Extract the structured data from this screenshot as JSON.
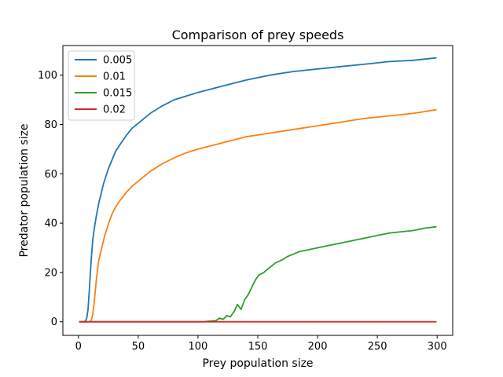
{
  "chart_data": {
    "type": "line",
    "title": "Comparison of prey speeds",
    "xlabel": "Prey population size",
    "ylabel": "Predator population size",
    "xlim": [
      -13,
      313
    ],
    "ylim": [
      -5.5,
      112
    ],
    "xticks": [
      0,
      50,
      100,
      150,
      200,
      250,
      300
    ],
    "yticks": [
      0,
      20,
      40,
      60,
      80,
      100
    ],
    "grid": false,
    "legend_position": "top-left",
    "series": [
      {
        "name": "0.005",
        "color": "#1f77b4",
        "x": [
          1,
          5,
          6,
          7,
          8,
          9,
          10,
          11,
          12,
          13,
          14,
          15,
          17,
          19,
          21,
          23,
          25,
          28,
          31,
          35,
          40,
          45,
          50,
          60,
          70,
          80,
          90,
          100,
          120,
          140,
          160,
          180,
          200,
          220,
          240,
          260,
          280,
          299
        ],
        "y": [
          0,
          0,
          0.5,
          1.5,
          5,
          12,
          20,
          27,
          33,
          37,
          40,
          43,
          48,
          52,
          56,
          59,
          62,
          65.5,
          69,
          72,
          75.5,
          78.5,
          80.5,
          84.5,
          87.5,
          90,
          91.5,
          93,
          95.5,
          98,
          100,
          101.5,
          102.5,
          103.5,
          104.5,
          105.5,
          106,
          107
        ]
      },
      {
        "name": "0.01",
        "color": "#ff7f0e",
        "x": [
          1,
          10,
          11,
          12,
          13,
          14,
          15,
          16,
          17,
          18,
          20,
          22,
          24,
          26,
          28,
          30,
          33,
          36,
          40,
          45,
          50,
          60,
          70,
          80,
          90,
          100,
          120,
          140,
          160,
          180,
          200,
          220,
          240,
          260,
          280,
          299
        ],
        "y": [
          0,
          0,
          1,
          3,
          7,
          12,
          17,
          21,
          25,
          27,
          31,
          35,
          38,
          41,
          43.5,
          45.5,
          48,
          50,
          52.5,
          55,
          57,
          61,
          64,
          66.5,
          68.5,
          70,
          72.5,
          75,
          76.5,
          78,
          79.5,
          81,
          82.5,
          83.5,
          84.5,
          86
        ]
      },
      {
        "name": "0.015",
        "color": "#2ca02c",
        "x": [
          1,
          105,
          110,
          115,
          118,
          121,
          124,
          127,
          130,
          133,
          136,
          139,
          142,
          145,
          148,
          151,
          155,
          160,
          165,
          170,
          175,
          180,
          185,
          190,
          195,
          200,
          210,
          220,
          230,
          240,
          250,
          260,
          270,
          280,
          290,
          299
        ],
        "y": [
          0,
          0,
          0.3,
          0.5,
          1.5,
          1,
          2.5,
          2,
          4,
          7,
          5,
          9,
          11,
          14,
          17,
          19,
          20,
          22,
          24,
          25,
          26.5,
          27.5,
          28.5,
          29,
          29.5,
          30,
          31,
          32,
          33,
          34,
          35,
          36,
          36.5,
          37,
          38,
          38.5
        ]
      },
      {
        "name": "0.02",
        "color": "#d62728",
        "x": [
          1,
          299
        ],
        "y": [
          0,
          0
        ]
      }
    ]
  }
}
